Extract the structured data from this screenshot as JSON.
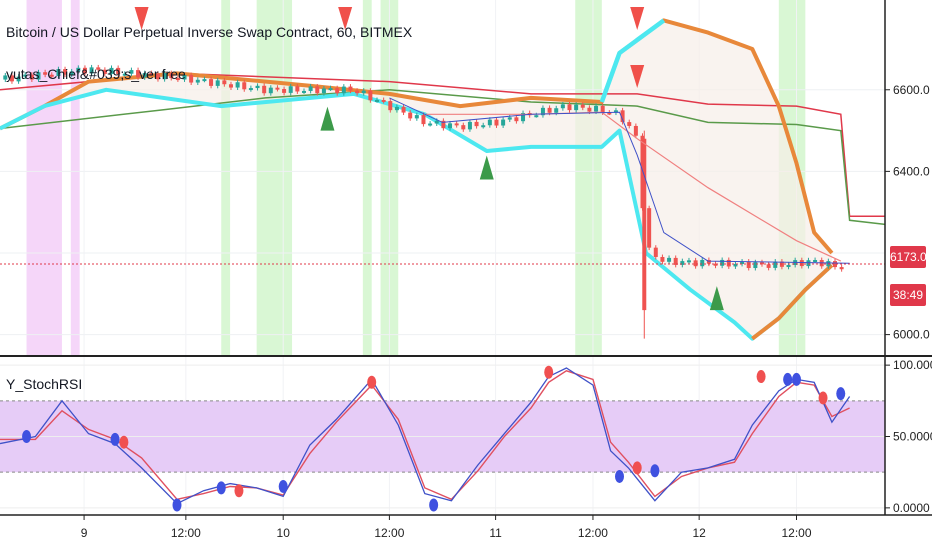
{
  "legend": {
    "symbol_line": "Bitcoin / US Dollar Perpetual Inverse Swap Contract, 60, BITMEX",
    "indicator_line": "yutas_Chief&#039;s_ver.free",
    "osc_line": "Y_StochRSI"
  },
  "badges": {
    "last_price": "6173.0",
    "countdown": "38:49"
  },
  "colors": {
    "up": "#26a69a",
    "down": "#ef5350",
    "cyan": "#4de8f0",
    "orange": "#e8883a",
    "red_line": "#e0384a",
    "green_line": "#5a9a4a",
    "blue_k": "#3f51c8",
    "stoch_band": "#e6ccf7",
    "green_bg": "#d9f7d4",
    "pink_bg": "#f5d6f9"
  },
  "chart_data": [
    {
      "type": "candlestick",
      "title": "",
      "x_ticks": [
        "9",
        "12:00",
        "10",
        "12:00",
        "11",
        "12:00",
        "12",
        "12:00"
      ],
      "y_ticks": [
        "6600.0",
        "6400.0",
        "6000.0"
      ],
      "ylim": [
        5950,
        6820
      ],
      "last_price": 6173.0,
      "price_path": [
        [
          0,
          6625
        ],
        [
          10,
          6650
        ],
        [
          20,
          6630
        ],
        [
          30,
          6600
        ],
        [
          40,
          6600
        ],
        [
          44,
          6560
        ],
        [
          48,
          6520
        ],
        [
          52,
          6510
        ],
        [
          56,
          6520
        ],
        [
          60,
          6540
        ],
        [
          64,
          6560
        ],
        [
          68,
          6550
        ],
        [
          70,
          6540
        ],
        [
          72,
          6480
        ],
        [
          73,
          6210
        ],
        [
          75,
          6180
        ],
        [
          80,
          6175
        ],
        [
          88,
          6170
        ],
        [
          92,
          6180
        ],
        [
          96,
          6160
        ]
      ],
      "upper_band": [
        [
          0,
          6505
        ],
        [
          5,
          6560
        ],
        [
          10,
          6620
        ],
        [
          20,
          6640
        ],
        [
          35,
          6610
        ],
        [
          44,
          6590
        ],
        [
          52,
          6560
        ],
        [
          60,
          6580
        ],
        [
          68,
          6570
        ],
        [
          70,
          6690
        ],
        [
          75,
          6770
        ],
        [
          80,
          6740
        ],
        [
          85,
          6700
        ],
        [
          88,
          6560
        ],
        [
          90,
          6420
        ],
        [
          92,
          6250
        ],
        [
          94,
          6200
        ]
      ],
      "lower_band": [
        [
          0,
          6505
        ],
        [
          5,
          6560
        ],
        [
          12,
          6600
        ],
        [
          25,
          6560
        ],
        [
          40,
          6590
        ],
        [
          48,
          6540
        ],
        [
          55,
          6450
        ],
        [
          60,
          6460
        ],
        [
          68,
          6460
        ],
        [
          70,
          6500
        ],
        [
          73,
          6200
        ],
        [
          78,
          6110
        ],
        [
          83,
          6030
        ],
        [
          85,
          5990
        ],
        [
          88,
          6040
        ],
        [
          91,
          6110
        ],
        [
          94,
          6170
        ]
      ],
      "red_envelope": [
        [
          0,
          6600
        ],
        [
          20,
          6640
        ],
        [
          44,
          6620
        ],
        [
          60,
          6590
        ],
        [
          72,
          6590
        ],
        [
          80,
          6565
        ],
        [
          90,
          6560
        ],
        [
          95,
          6540
        ],
        [
          96,
          6290
        ],
        [
          100,
          6290
        ]
      ],
      "green_envelope": [
        [
          0,
          6505
        ],
        [
          18,
          6550
        ],
        [
          30,
          6580
        ],
        [
          44,
          6600
        ],
        [
          60,
          6570
        ],
        [
          72,
          6560
        ],
        [
          80,
          6520
        ],
        [
          90,
          6515
        ],
        [
          95,
          6500
        ],
        [
          96,
          6280
        ],
        [
          100,
          6270
        ]
      ],
      "sell_markers": [
        16,
        39,
        72
      ],
      "buy_markers": [
        37,
        55,
        81
      ],
      "highlight_green": [
        [
          25,
          26
        ],
        [
          29,
          33
        ],
        [
          41,
          42
        ],
        [
          43,
          45
        ],
        [
          65,
          68
        ],
        [
          88,
          91
        ]
      ],
      "highlight_pink": [
        [
          3,
          7
        ],
        [
          8,
          9
        ]
      ]
    },
    {
      "type": "line",
      "title": "",
      "y_ticks": [
        "100.0000",
        "50.0000",
        "0.0000"
      ],
      "ylim": [
        -5,
        105
      ],
      "band": [
        25,
        75
      ],
      "series": [
        {
          "x": [
            0,
            4,
            7,
            10,
            13,
            16,
            20,
            23,
            26,
            29,
            32,
            35,
            38,
            42,
            45,
            48,
            51,
            54,
            57,
            60,
            62,
            64,
            67,
            69,
            71,
            74,
            77,
            80,
            83,
            85,
            88,
            90,
            92,
            94,
            96
          ],
          "values": [
            45,
            50,
            75,
            52,
            45,
            28,
            3,
            12,
            17,
            14,
            8,
            44,
            62,
            90,
            58,
            10,
            5,
            30,
            52,
            74,
            92,
            98,
            86,
            40,
            28,
            5,
            25,
            28,
            34,
            58,
            82,
            90,
            88,
            60,
            78
          ]
        },
        {
          "x": [
            0,
            4,
            7,
            10,
            13,
            16,
            20,
            23,
            26,
            29,
            32,
            35,
            38,
            42,
            45,
            48,
            51,
            54,
            57,
            60,
            62,
            64,
            67,
            69,
            71,
            74,
            77,
            80,
            83,
            85,
            88,
            90,
            92,
            94,
            96
          ],
          "values": [
            48,
            48,
            68,
            55,
            48,
            35,
            6,
            10,
            15,
            14,
            9,
            38,
            60,
            86,
            62,
            14,
            6,
            26,
            50,
            70,
            88,
            96,
            90,
            46,
            32,
            8,
            22,
            28,
            32,
            52,
            78,
            88,
            86,
            64,
            70
          ]
        }
      ],
      "crosses_blue": [
        [
          3,
          50
        ],
        [
          13,
          48
        ],
        [
          20,
          2
        ],
        [
          25,
          14
        ],
        [
          32,
          15
        ],
        [
          49,
          2
        ],
        [
          70,
          22
        ],
        [
          74,
          26
        ],
        [
          89,
          90
        ],
        [
          90,
          90
        ],
        [
          95,
          80
        ]
      ],
      "crosses_red": [
        [
          14,
          46
        ],
        [
          27,
          12
        ],
        [
          42,
          88
        ],
        [
          62,
          95
        ],
        [
          72,
          28
        ],
        [
          86,
          92
        ],
        [
          93,
          77
        ]
      ]
    }
  ]
}
